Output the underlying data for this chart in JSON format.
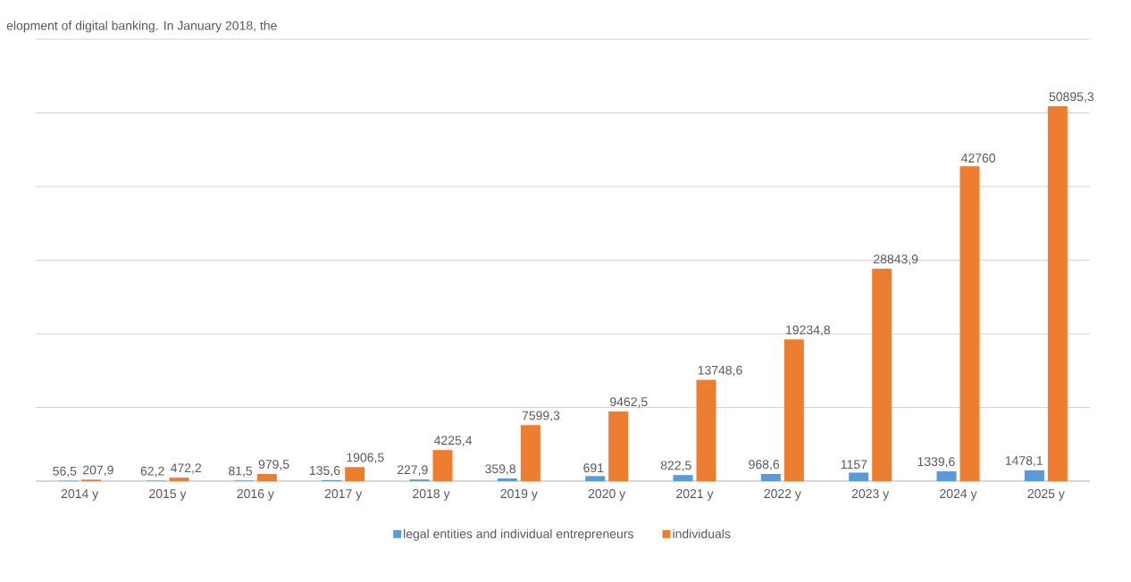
{
  "chart_data": {
    "type": "bar",
    "annotations": [
      "elopment of digital banking. In January 2018, the"
    ],
    "categories": [
      "2014 y",
      "2015 y",
      "2016 y",
      "2017 y",
      "2018 y",
      "2019 y",
      "2020 y",
      "2021 y",
      "2022 y",
      "2023 y",
      "2024 y",
      "2025 y"
    ],
    "series": [
      {
        "name": "legal entities and individual entrepreneurs",
        "color": "#5b9bd5",
        "values": [
          56.5,
          62.2,
          81.5,
          135.6,
          227.9,
          359.8,
          691,
          822.5,
          968.6,
          1157,
          1339.6,
          1478.1
        ],
        "value_labels": [
          "56,5",
          "62,2",
          "81,5",
          "135,6",
          "227,9",
          "359,8",
          "691",
          "822,5",
          "968,6",
          "1157",
          "1339,6",
          "1478,1"
        ]
      },
      {
        "name": "individuals",
        "color": "#ed7d31",
        "values": [
          207.9,
          472.2,
          979.5,
          1906.5,
          4225.4,
          7599.3,
          9462.5,
          13748.6,
          19234.8,
          28843.9,
          42760,
          50895.3
        ],
        "value_labels": [
          "207,9",
          "472,2",
          "979,5",
          "1906,5",
          "4225,4",
          "7599,3",
          "9462,5",
          "13748,6",
          "19234,8",
          "28843,9",
          "42760",
          "50895,3"
        ]
      }
    ],
    "ylim": [
      0,
      60000
    ],
    "yticks": [
      {
        "value": 0,
        "label": null
      },
      {
        "value": 10000,
        "label": null
      },
      {
        "value": 20000,
        "label": null
      },
      {
        "value": 30000,
        "label": null
      },
      {
        "value": 40000,
        "label": null
      },
      {
        "value": 50000,
        "label": null
      },
      {
        "value": 60000,
        "label": null
      }
    ],
    "grid": "y",
    "legend": "bottom",
    "tick_labels": "x"
  }
}
